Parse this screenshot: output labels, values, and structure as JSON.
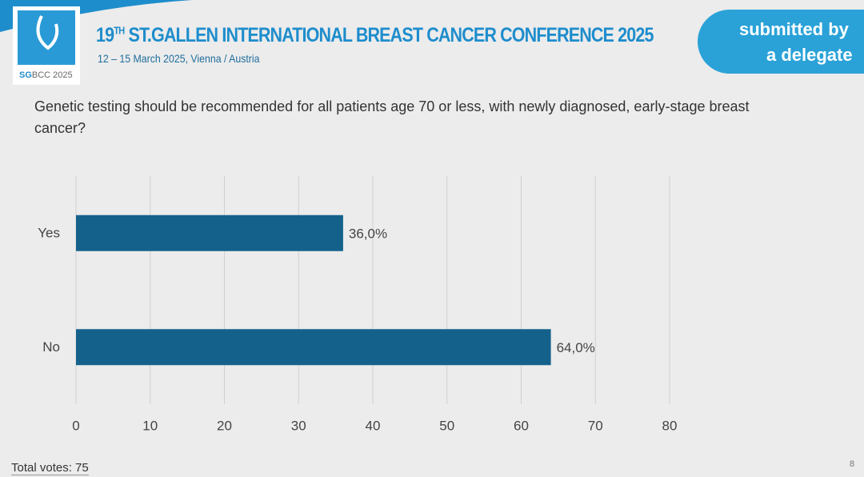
{
  "header": {
    "title_number": "19",
    "title_suffix": "TH",
    "title_rest": "ST.GALLEN INTERNATIONAL BREAST CANCER CONFERENCE 2025",
    "subtitle": "12 – 15 March 2025, Vienna / Austria",
    "logo_strong": "SG",
    "logo_rest": "BCC 2025"
  },
  "badge": {
    "line1": "submitted by",
    "line2": "a delegate"
  },
  "chart_data": {
    "type": "bar",
    "orientation": "horizontal",
    "title": "Genetic testing should be recommended for all patients age 70 or less, with newly diagnosed, early-stage breast cancer?",
    "categories": [
      "Yes",
      "No"
    ],
    "values": [
      36,
      64
    ],
    "value_labels": [
      "36,0%",
      "64,0%"
    ],
    "color": "#14628c",
    "xlim": [
      0,
      80
    ],
    "xticks": [
      0,
      10,
      20,
      30,
      40,
      50,
      60,
      70,
      80
    ],
    "grid": true
  },
  "footer": {
    "votes": "Total votes: 75",
    "page": "8"
  }
}
